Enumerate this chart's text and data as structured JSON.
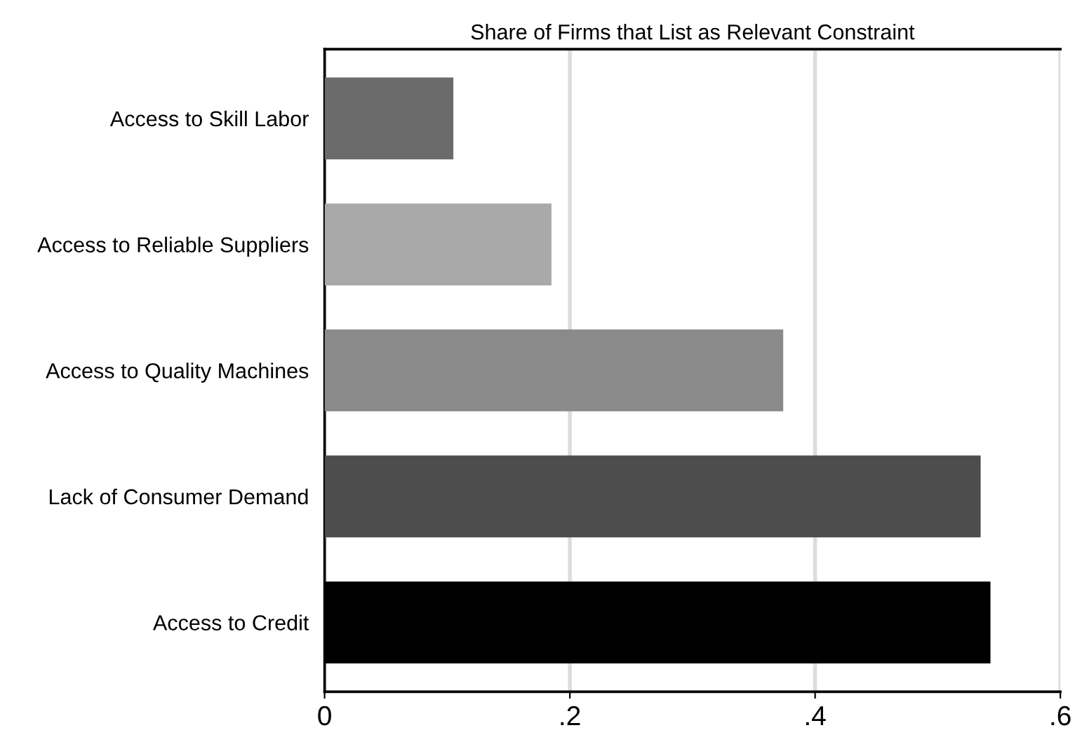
{
  "chart_data": {
    "type": "bar",
    "orientation": "horizontal",
    "title": "Share of Firms that List as Relevant Constraint",
    "categories": [
      "Access to Skill Labor",
      "Access to Reliable Suppliers",
      "Access to Quality Machines",
      "Lack of Consumer Demand",
      "Access to Credit"
    ],
    "values": [
      0.105,
      0.185,
      0.374,
      0.535,
      0.543
    ],
    "colors": [
      "#6b6b6b",
      "#a9a9a9",
      "#8a8a8a",
      "#4d4d4d",
      "#000000"
    ],
    "xlim": [
      0,
      0.6
    ],
    "xticks": [
      {
        "value": 0,
        "label": "0"
      },
      {
        "value": 0.2,
        "label": ".2"
      },
      {
        "value": 0.4,
        "label": ".4"
      },
      {
        "value": 0.6,
        "label": ".6"
      }
    ],
    "grid": "x",
    "legend": false
  }
}
